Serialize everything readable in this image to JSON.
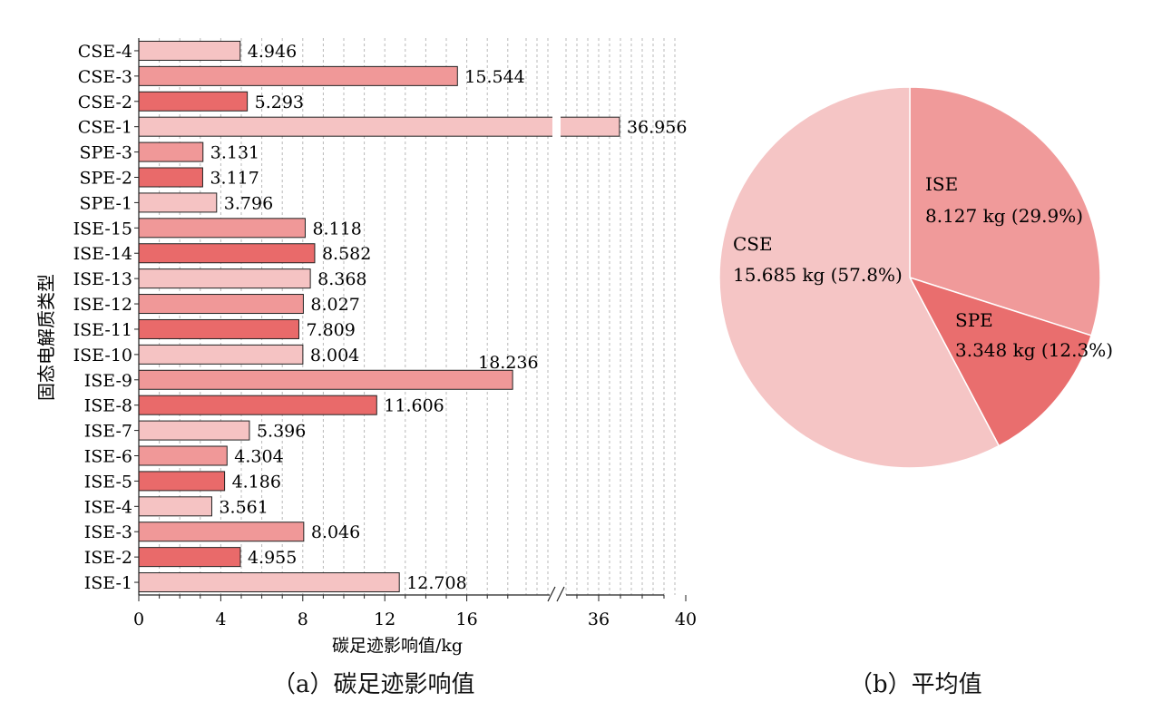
{
  "chart_data": [
    {
      "type": "bar",
      "orientation": "horizontal",
      "categories": [
        "CSE-4",
        "CSE-3",
        "CSE-2",
        "CSE-1",
        "SPE-3",
        "SPE-2",
        "SPE-1",
        "ISE-15",
        "ISE-14",
        "ISE-13",
        "ISE-12",
        "ISE-11",
        "ISE-10",
        "ISE-9",
        "ISE-8",
        "ISE-7",
        "ISE-6",
        "ISE-5",
        "ISE-4",
        "ISE-3",
        "ISE-2",
        "ISE-1"
      ],
      "values": [
        4.946,
        15.544,
        5.293,
        36.956,
        3.131,
        3.117,
        3.796,
        8.118,
        8.582,
        8.368,
        8.027,
        7.809,
        8.004,
        18.236,
        11.606,
        5.396,
        4.304,
        4.186,
        3.561,
        8.046,
        4.955,
        12.708
      ],
      "value_labels": [
        "4.946",
        "15.544",
        "5.293",
        "36.956",
        "3.131",
        "3.117",
        "3.796",
        "8.118",
        "8.582",
        "8.368",
        "8.027",
        "7.809",
        "8.004",
        "18.236",
        "11.606",
        "5.396",
        "4.304",
        "4.186",
        "3.561",
        "8.046",
        "4.955",
        "12.708"
      ],
      "bar_colors": [
        "#f5c3c3",
        "#f09898",
        "#e96a6a",
        "#f5c3c3",
        "#f09898",
        "#e96a6a",
        "#f5c3c3",
        "#f09898",
        "#e96a6a",
        "#f5c3c3",
        "#f09898",
        "#e96a6a",
        "#f5c3c3",
        "#f09898",
        "#e96a6a",
        "#f5c3c3",
        "#f09898",
        "#e96a6a",
        "#f5c3c3",
        "#f09898",
        "#e96a6a",
        "#f5c3c3"
      ],
      "xlabel": "碳足迹影响值/kg",
      "ylabel": "固态电解质类型",
      "xlim": [
        0,
        40
      ],
      "x_break": [
        24,
        34
      ],
      "ticks_left": [
        "0",
        "4",
        "8",
        "12",
        "16"
      ],
      "ticks_right": [
        "36",
        "40"
      ],
      "grid": true,
      "caption": "（a）碳足迹影响值"
    },
    {
      "type": "pie",
      "slices": [
        {
          "label": "ISE",
          "detail": "8.127 kg (29.9%)",
          "value": 8.127,
          "percent": 29.9,
          "color": "#f09a9a"
        },
        {
          "label": "SPE",
          "detail": "3.348 kg (12.3%)",
          "value": 3.348,
          "percent": 12.3,
          "color": "#e96e6e"
        },
        {
          "label": "CSE",
          "detail": "15.685 kg (57.8%)",
          "value": 15.685,
          "percent": 57.8,
          "color": "#f5c5c5"
        }
      ],
      "caption": "（b）平均值"
    }
  ]
}
